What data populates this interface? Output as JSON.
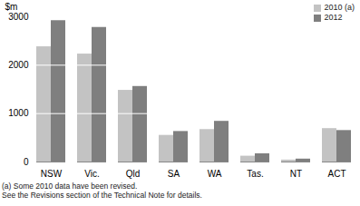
{
  "chart_data": {
    "type": "bar",
    "y_label": "$m",
    "categories": [
      "NSW",
      "Vic.",
      "Qld",
      "SA",
      "WA",
      "Tas.",
      "NT",
      "ACT"
    ],
    "series": [
      {
        "name": "2010 (a)",
        "color": "#c3c3c3",
        "values": [
          2380,
          2230,
          1480,
          550,
          670,
          120,
          40,
          690
        ]
      },
      {
        "name": "2012",
        "color": "#7f7f7f",
        "values": [
          2920,
          2780,
          1560,
          630,
          840,
          170,
          60,
          650
        ]
      }
    ],
    "ylim": [
      0,
      3000
    ],
    "yticks": [
      0,
      1000,
      2000,
      3000
    ],
    "grid": true,
    "legend": "top-right",
    "annotations": [
      "(a) Some 2010 data have been revised.",
      "See the Revisions section of the Technical Note for details."
    ]
  }
}
